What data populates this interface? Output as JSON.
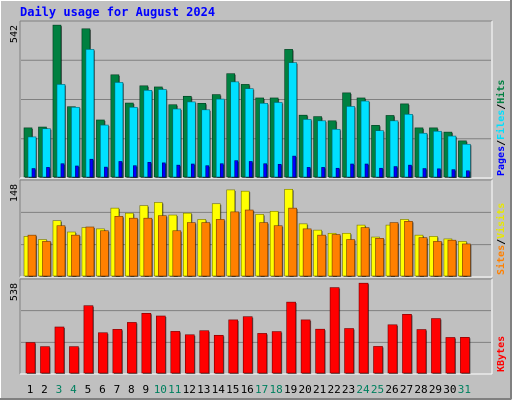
{
  "chart_data": {
    "type": "bar",
    "title": "Daily usage for August 2024",
    "days": [
      "1",
      "2",
      "3",
      "4",
      "5",
      "6",
      "7",
      "8",
      "9",
      "10",
      "11",
      "12",
      "13",
      "14",
      "15",
      "16",
      "17",
      "18",
      "19",
      "20",
      "21",
      "22",
      "23",
      "24",
      "25",
      "26",
      "27",
      "28",
      "29",
      "30",
      "31"
    ],
    "weekend_days": [
      "3",
      "4",
      "10",
      "11",
      "17",
      "18",
      "24",
      "25",
      "31"
    ],
    "panels": [
      {
        "id": "hits-files-pages",
        "ymax_label": "542",
        "ymax": 542,
        "legend": [
          "Pages",
          "/",
          "Files",
          "/",
          "Hits"
        ],
        "series": [
          {
            "name": "Hits",
            "color": "#008040",
            "values": [
              174,
              177,
              538,
              249,
              525,
              202,
              362,
              262,
              323,
              319,
              256,
              286,
              261,
              292,
              366,
              328,
              280,
              280,
              452,
              219,
              214,
              199,
              298,
              280,
              183,
              218,
              259,
              174,
              174,
              159,
              128
            ]
          },
          {
            "name": "Files",
            "color": "#00e0ff",
            "values": [
              142,
              171,
              328,
              247,
              452,
              184,
              335,
              247,
              307,
              310,
              241,
              266,
              238,
              276,
              337,
              313,
              261,
              264,
              405,
              204,
              199,
              169,
              250,
              269,
              164,
              199,
              222,
              155,
              162,
              145,
              116
            ]
          },
          {
            "name": "Pages",
            "color": "#0000ff",
            "values": [
              30,
              34,
              47,
              39,
              63,
              35,
              55,
              40,
              52,
              50,
              42,
              46,
              40,
              47,
              58,
              55,
              47,
              45,
              74,
              34,
              34,
              31,
              46,
              46,
              31,
              37,
              42,
              30,
              29,
              26,
              22
            ]
          }
        ]
      },
      {
        "id": "visits-sites",
        "ymax_label": "148",
        "ymax": 148,
        "legend": [
          "Sites",
          "/",
          "Visits"
        ],
        "series": [
          {
            "name": "Visits",
            "color": "#ffff00",
            "values": [
              63,
              58,
              88,
              70,
              77,
              75,
              108,
              100,
              112,
              117,
              97,
              100,
              90,
              115,
              137,
              135,
              98,
              103,
              138,
              83,
              73,
              68,
              68,
              81,
              62,
              81,
              90,
              65,
              63,
              59,
              55
            ]
          },
          {
            "name": "Sites",
            "color": "#ff8000",
            "values": [
              65,
              55,
              80,
              65,
              78,
              72,
              95,
              92,
              92,
              96,
              72,
              85,
              85,
              90,
              102,
              105,
              85,
              80,
              108,
              75,
              65,
              66,
              58,
              77,
              60,
              85,
              87,
              61,
              55,
              57,
              51
            ]
          }
        ]
      },
      {
        "id": "kbytes",
        "ymax_label": "538",
        "ymax": 538,
        "legend": [
          "KBytes"
        ],
        "series": [
          {
            "name": "KBytes",
            "color": "#ff0000",
            "values": [
              180,
              156,
              272,
              156,
              398,
              238,
              258,
              299,
              353,
              337,
              246,
              226,
              250,
              223,
              314,
              333,
              234,
              245,
              419,
              314,
              259,
              505,
              263,
              531,
              157,
              285,
              347,
              257,
              322,
              210,
              211
            ]
          }
        ]
      }
    ]
  }
}
